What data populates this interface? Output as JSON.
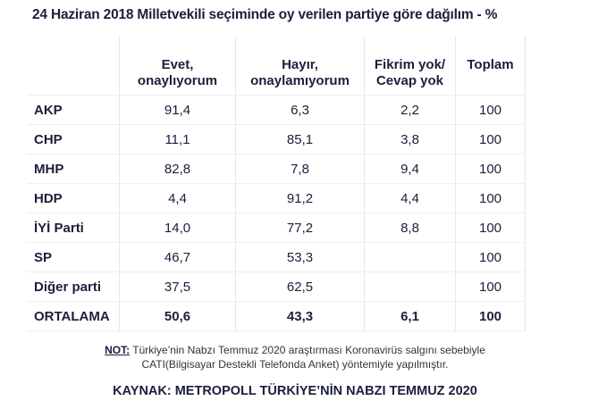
{
  "chart_data": {
    "type": "table",
    "title": "24 Haziran 2018 Milletvekili seçiminde oy verilen partiye göre dağılım - %",
    "columns": [
      "Evet,\nonaylıyorum",
      "Hayır,\nonaylamıyorum",
      "Fikrim yok/\nCevap yok",
      "Toplam"
    ],
    "column_lines": [
      [
        "Evet,",
        "onaylıyorum"
      ],
      [
        "Hayır,",
        "onaylamıyorum"
      ],
      [
        "Fikrim yok/",
        "Cevap yok"
      ],
      [
        "Toplam"
      ]
    ],
    "rows": [
      {
        "label": "AKP",
        "values": [
          "91,4",
          "6,3",
          "2,2",
          "100"
        ]
      },
      {
        "label": "CHP",
        "values": [
          "11,1",
          "85,1",
          "3,8",
          "100"
        ]
      },
      {
        "label": "MHP",
        "values": [
          "82,8",
          "7,8",
          "9,4",
          "100"
        ]
      },
      {
        "label": "HDP",
        "values": [
          "4,4",
          "91,2",
          "4,4",
          "100"
        ]
      },
      {
        "label": "İYİ Parti",
        "values": [
          "14,0",
          "77,2",
          "8,8",
          "100"
        ]
      },
      {
        "label": "SP",
        "values": [
          "46,7",
          "53,3",
          "",
          "100"
        ]
      },
      {
        "label": "Diğer parti",
        "values": [
          "37,5",
          "62,5",
          "",
          "100"
        ]
      },
      {
        "label": "ORTALAMA",
        "values": [
          "50,6",
          "43,3",
          "6,1",
          "100"
        ]
      }
    ]
  },
  "note": {
    "label": "NOT:",
    "line1": " Türkiye’nin Nabzı Temmuz 2020 araştırması Koronavirüs salgını sebebiyle",
    "line2": "CATI(Bilgisayar Destekli Telefonda Anket) yöntemiyle yapılmıştır."
  },
  "source": "KAYNAK: METROPOLL TÜRKİYE’NİN NABZI TEMMUZ 2020",
  "colors": {
    "text": "#1b1f3b",
    "grid": "#e4e6ec"
  }
}
